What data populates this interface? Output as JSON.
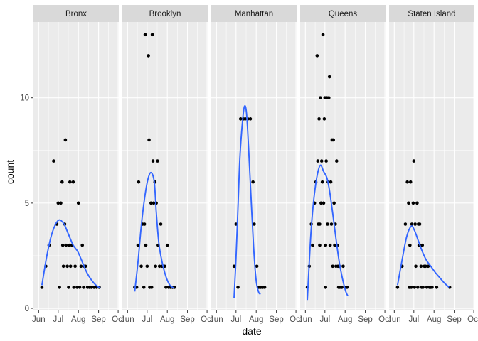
{
  "chart_data": {
    "type": "scatter",
    "facet_by": "borough",
    "xlabel": "date",
    "ylabel": "count",
    "xlim": [
      "2020-05-24",
      "2020-10-02"
    ],
    "ylim": [
      -0.1,
      13.6
    ],
    "y_ticks": [
      0,
      5,
      10
    ],
    "y_tick_labels": [
      "0",
      "5",
      "10"
    ],
    "x_ticks": [
      "2020-06-01",
      "2020-07-01",
      "2020-08-01",
      "2020-09-01",
      "2020-10-01"
    ],
    "x_tick_labels": [
      "Jun",
      "Jul",
      "Aug",
      "Sep",
      "Oct"
    ],
    "grid": true,
    "colors": {
      "panel_bg": "#ebebeb",
      "grid_major": "#ffffff",
      "strip_bg": "#d9d9d9",
      "points": "#000000",
      "smooth": "#3366ff"
    },
    "facets": [
      {
        "name": "Bronx",
        "points": [
          [
            "2020-06-06",
            1
          ],
          [
            "2020-06-12",
            2
          ],
          [
            "2020-06-17",
            3
          ],
          [
            "2020-06-24",
            7
          ],
          [
            "2020-06-29",
            4
          ],
          [
            "2020-07-01",
            5
          ],
          [
            "2020-07-03",
            1
          ],
          [
            "2020-07-05",
            5
          ],
          [
            "2020-07-07",
            6
          ],
          [
            "2020-07-08",
            3
          ],
          [
            "2020-07-09",
            2
          ],
          [
            "2020-07-11",
            4
          ],
          [
            "2020-07-12",
            8
          ],
          [
            "2020-07-13",
            3
          ],
          [
            "2020-07-15",
            2
          ],
          [
            "2020-07-17",
            1
          ],
          [
            "2020-07-18",
            3
          ],
          [
            "2020-07-19",
            6
          ],
          [
            "2020-07-20",
            2
          ],
          [
            "2020-07-22",
            3
          ],
          [
            "2020-07-24",
            6
          ],
          [
            "2020-07-25",
            1
          ],
          [
            "2020-07-27",
            2
          ],
          [
            "2020-07-30",
            1
          ],
          [
            "2020-08-01",
            5
          ],
          [
            "2020-08-03",
            1
          ],
          [
            "2020-08-05",
            2
          ],
          [
            "2020-08-07",
            3
          ],
          [
            "2020-08-09",
            1
          ],
          [
            "2020-08-10",
            2
          ],
          [
            "2020-08-12",
            2
          ],
          [
            "2020-08-15",
            1
          ],
          [
            "2020-08-18",
            1
          ],
          [
            "2020-08-21",
            1
          ],
          [
            "2020-08-25",
            1
          ],
          [
            "2020-08-29",
            1
          ],
          [
            "2020-09-02",
            1
          ]
        ],
        "smooth": [
          [
            "2020-06-06",
            1.1
          ],
          [
            "2020-06-13",
            2.4
          ],
          [
            "2020-06-20",
            3.4
          ],
          [
            "2020-06-27",
            4.0
          ],
          [
            "2020-07-03",
            4.2
          ],
          [
            "2020-07-10",
            4.0
          ],
          [
            "2020-07-17",
            3.5
          ],
          [
            "2020-07-24",
            3.0
          ],
          [
            "2020-07-31",
            2.7
          ],
          [
            "2020-08-07",
            2.2
          ],
          [
            "2020-08-14",
            1.7
          ],
          [
            "2020-08-21",
            1.35
          ],
          [
            "2020-08-28",
            1.1
          ],
          [
            "2020-09-04",
            0.95
          ]
        ]
      },
      {
        "name": "Brooklyn",
        "points": [
          [
            "2020-06-12",
            1
          ],
          [
            "2020-06-15",
            1
          ],
          [
            "2020-06-17",
            3
          ],
          [
            "2020-06-18",
            6
          ],
          [
            "2020-06-22",
            2
          ],
          [
            "2020-06-24",
            4
          ],
          [
            "2020-06-26",
            1
          ],
          [
            "2020-06-27",
            4
          ],
          [
            "2020-06-28",
            13
          ],
          [
            "2020-06-29",
            3
          ],
          [
            "2020-07-01",
            2
          ],
          [
            "2020-07-03",
            12
          ],
          [
            "2020-07-04",
            8
          ],
          [
            "2020-07-05",
            1
          ],
          [
            "2020-07-07",
            5
          ],
          [
            "2020-07-08",
            1
          ],
          [
            "2020-07-09",
            13
          ],
          [
            "2020-07-10",
            7
          ],
          [
            "2020-07-11",
            5
          ],
          [
            "2020-07-13",
            6
          ],
          [
            "2020-07-14",
            2
          ],
          [
            "2020-07-15",
            5
          ],
          [
            "2020-07-17",
            7
          ],
          [
            "2020-07-18",
            3
          ],
          [
            "2020-07-20",
            2
          ],
          [
            "2020-07-22",
            4
          ],
          [
            "2020-07-24",
            2
          ],
          [
            "2020-07-26",
            2
          ],
          [
            "2020-07-28",
            2
          ],
          [
            "2020-07-30",
            1
          ],
          [
            "2020-08-01",
            3
          ],
          [
            "2020-08-03",
            1
          ],
          [
            "2020-08-06",
            1
          ],
          [
            "2020-08-09",
            1
          ],
          [
            "2020-08-12",
            1
          ]
        ],
        "smooth": [
          [
            "2020-06-12",
            0.8
          ],
          [
            "2020-06-17",
            2.2
          ],
          [
            "2020-06-22",
            3.9
          ],
          [
            "2020-06-27",
            5.2
          ],
          [
            "2020-07-02",
            6.1
          ],
          [
            "2020-07-07",
            6.45
          ],
          [
            "2020-07-12",
            6.0
          ],
          [
            "2020-07-15",
            4.6
          ],
          [
            "2020-07-19",
            3.1
          ],
          [
            "2020-07-24",
            2.2
          ],
          [
            "2020-07-30",
            1.5
          ],
          [
            "2020-08-05",
            1.1
          ],
          [
            "2020-08-12",
            0.95
          ]
        ]
      },
      {
        "name": "Manhattan",
        "points": [
          [
            "2020-06-28",
            2
          ],
          [
            "2020-07-01",
            4
          ],
          [
            "2020-07-04",
            1
          ],
          [
            "2020-07-08",
            9
          ],
          [
            "2020-07-12",
            9
          ],
          [
            "2020-07-15",
            9
          ],
          [
            "2020-07-19",
            9
          ],
          [
            "2020-07-23",
            9
          ],
          [
            "2020-07-27",
            6
          ],
          [
            "2020-07-29",
            4
          ],
          [
            "2020-08-02",
            2
          ],
          [
            "2020-08-05",
            1
          ],
          [
            "2020-08-08",
            1
          ],
          [
            "2020-08-11",
            1
          ],
          [
            "2020-08-14",
            1
          ]
        ],
        "smooth": [
          [
            "2020-06-28",
            0.5
          ],
          [
            "2020-07-01",
            2.4
          ],
          [
            "2020-07-04",
            4.8
          ],
          [
            "2020-07-07",
            7.2
          ],
          [
            "2020-07-11",
            8.9
          ],
          [
            "2020-07-14",
            9.6
          ],
          [
            "2020-07-17",
            9.3
          ],
          [
            "2020-07-20",
            7.8
          ],
          [
            "2020-07-24",
            5.3
          ],
          [
            "2020-07-28",
            2.9
          ],
          [
            "2020-08-01",
            1.3
          ],
          [
            "2020-08-05",
            0.75
          ],
          [
            "2020-08-08",
            0.7
          ]
        ]
      },
      {
        "name": "Queens",
        "points": [
          [
            "2020-06-04",
            1
          ],
          [
            "2020-06-07",
            2
          ],
          [
            "2020-06-10",
            4
          ],
          [
            "2020-06-12",
            3
          ],
          [
            "2020-06-15",
            5
          ],
          [
            "2020-06-17",
            6
          ],
          [
            "2020-06-19",
            12
          ],
          [
            "2020-06-20",
            7
          ],
          [
            "2020-06-21",
            4
          ],
          [
            "2020-06-22",
            9
          ],
          [
            "2020-06-23",
            4
          ],
          [
            "2020-06-24",
            10
          ],
          [
            "2020-06-25",
            5
          ],
          [
            "2020-06-26",
            7
          ],
          [
            "2020-06-27",
            6
          ],
          [
            "2020-06-28",
            13
          ],
          [
            "2020-06-29",
            5
          ],
          [
            "2020-06-30",
            9
          ],
          [
            "2020-07-01",
            10
          ],
          [
            "2020-07-02",
            3
          ],
          [
            "2020-07-03",
            7
          ],
          [
            "2020-07-04",
            10
          ],
          [
            "2020-07-05",
            4
          ],
          [
            "2020-07-06",
            6
          ],
          [
            "2020-07-07",
            10
          ],
          [
            "2020-07-08",
            11
          ],
          [
            "2020-07-09",
            3
          ],
          [
            "2020-07-10",
            6
          ],
          [
            "2020-07-11",
            4
          ],
          [
            "2020-07-12",
            8
          ],
          [
            "2020-07-13",
            2
          ],
          [
            "2020-07-14",
            8
          ],
          [
            "2020-07-15",
            5
          ],
          [
            "2020-07-16",
            3
          ],
          [
            "2020-07-17",
            4
          ],
          [
            "2020-07-18",
            2
          ],
          [
            "2020-07-19",
            7
          ],
          [
            "2020-07-20",
            3
          ],
          [
            "2020-07-21",
            2
          ],
          [
            "2020-07-22",
            1
          ],
          [
            "2020-07-23",
            2
          ],
          [
            "2020-07-24",
            1
          ],
          [
            "2020-07-27",
            1
          ],
          [
            "2020-07-29",
            2
          ],
          [
            "2020-08-01",
            1
          ],
          [
            "2020-08-04",
            1
          ],
          [
            "2020-07-02",
            1
          ],
          [
            "2020-06-23",
            3
          ]
        ],
        "smooth": [
          [
            "2020-06-04",
            0.4
          ],
          [
            "2020-06-07",
            2.2
          ],
          [
            "2020-06-10",
            3.8
          ],
          [
            "2020-06-14",
            5.2
          ],
          [
            "2020-06-19",
            6.3
          ],
          [
            "2020-06-24",
            6.8
          ],
          [
            "2020-06-29",
            6.5
          ],
          [
            "2020-07-04",
            6.2
          ],
          [
            "2020-07-08",
            5.6
          ],
          [
            "2020-07-13",
            4.5
          ],
          [
            "2020-07-18",
            3.3
          ],
          [
            "2020-07-23",
            2.2
          ],
          [
            "2020-07-28",
            1.4
          ],
          [
            "2020-08-02",
            0.8
          ],
          [
            "2020-08-05",
            0.6
          ]
        ]
      },
      {
        "name": "Staten Island",
        "points": [
          [
            "2020-06-06",
            1
          ],
          [
            "2020-06-13",
            2
          ],
          [
            "2020-06-18",
            4
          ],
          [
            "2020-06-21",
            6
          ],
          [
            "2020-06-23",
            5
          ],
          [
            "2020-06-24",
            1
          ],
          [
            "2020-06-25",
            3
          ],
          [
            "2020-06-26",
            6
          ],
          [
            "2020-06-27",
            1
          ],
          [
            "2020-06-28",
            4
          ],
          [
            "2020-06-30",
            5
          ],
          [
            "2020-07-01",
            7
          ],
          [
            "2020-07-02",
            1
          ],
          [
            "2020-07-03",
            4
          ],
          [
            "2020-07-04",
            2
          ],
          [
            "2020-07-06",
            5
          ],
          [
            "2020-07-07",
            1
          ],
          [
            "2020-07-08",
            4
          ],
          [
            "2020-07-09",
            3
          ],
          [
            "2020-07-10",
            4
          ],
          [
            "2020-07-11",
            3
          ],
          [
            "2020-07-12",
            2
          ],
          [
            "2020-07-13",
            1
          ],
          [
            "2020-07-14",
            3
          ],
          [
            "2020-07-15",
            1
          ],
          [
            "2020-07-17",
            2
          ],
          [
            "2020-07-19",
            2
          ],
          [
            "2020-07-21",
            1
          ],
          [
            "2020-07-23",
            2
          ],
          [
            "2020-07-25",
            1
          ],
          [
            "2020-07-27",
            1
          ],
          [
            "2020-07-29",
            1
          ],
          [
            "2020-08-05",
            1
          ],
          [
            "2020-08-25",
            1
          ]
        ],
        "smooth": [
          [
            "2020-06-06",
            1.1
          ],
          [
            "2020-06-13",
            2.3
          ],
          [
            "2020-06-20",
            3.4
          ],
          [
            "2020-06-27",
            3.9
          ],
          [
            "2020-07-02",
            3.7
          ],
          [
            "2020-07-08",
            3.2
          ],
          [
            "2020-07-14",
            2.7
          ],
          [
            "2020-07-20",
            2.3
          ],
          [
            "2020-07-27",
            2.0
          ],
          [
            "2020-08-03",
            1.7
          ],
          [
            "2020-08-10",
            1.45
          ],
          [
            "2020-08-17",
            1.2
          ],
          [
            "2020-08-24",
            1.0
          ]
        ]
      }
    ]
  }
}
